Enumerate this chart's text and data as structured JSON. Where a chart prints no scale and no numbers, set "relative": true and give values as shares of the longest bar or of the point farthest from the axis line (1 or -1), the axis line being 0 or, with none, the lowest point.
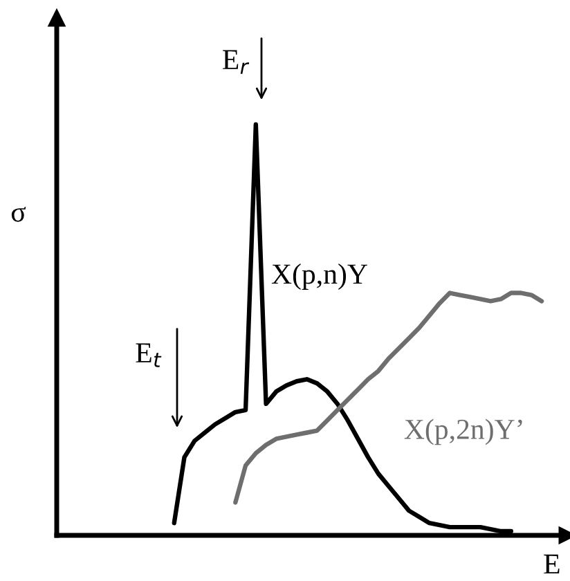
{
  "chart_data": {
    "type": "line",
    "relative": true,
    "xlabel": "E",
    "ylabel": "σ",
    "marker": "none",
    "line_style": "solid",
    "categories": [
      null,
      null,
      null,
      null,
      null,
      null,
      null,
      null,
      null,
      null,
      null,
      null,
      null,
      null,
      null,
      null,
      null,
      null,
      null,
      null,
      null,
      null,
      null,
      null,
      null,
      null,
      null,
      null,
      null,
      null,
      null,
      null,
      null,
      null,
      null,
      null,
      null,
      null,
      null,
      null,
      null,
      null,
      null,
      null,
      null,
      null,
      null,
      null,
      null,
      null
    ],
    "series": [
      {
        "name": "X(p,n)Y",
        "color": "#000000",
        "values": [
          null,
          null,
          null,
          null,
          null,
          null,
          null,
          null,
          null,
          null,
          null,
          0.03,
          0.19,
          0.23,
          0.25,
          0.27,
          0.285,
          0.3,
          0.305,
          1.0,
          0.32,
          0.35,
          0.365,
          0.375,
          0.38,
          0.37,
          0.35,
          0.32,
          0.28,
          0.235,
          0.19,
          0.15,
          0.12,
          0.09,
          0.06,
          0.045,
          0.03,
          0.025,
          0.02,
          0.02,
          0.02,
          0.02,
          0.015,
          0.01,
          0.01,
          null,
          null,
          null,
          null,
          null
        ]
      },
      {
        "name": "X(p,2n)Y’",
        "color": "#6e6e6e",
        "values": [
          null,
          null,
          null,
          null,
          null,
          null,
          null,
          null,
          null,
          null,
          null,
          null,
          null,
          null,
          null,
          null,
          null,
          0.08,
          0.17,
          0.2,
          0.22,
          0.235,
          0.24,
          0.245,
          0.25,
          0.255,
          0.28,
          0.305,
          0.33,
          0.355,
          0.38,
          0.4,
          0.43,
          0.455,
          0.48,
          0.505,
          0.535,
          0.565,
          0.59,
          0.585,
          0.58,
          0.575,
          0.57,
          0.575,
          0.59,
          0.59,
          0.585,
          0.57,
          null,
          null
        ]
      }
    ],
    "annotations": [
      "E$_{r}$",
      "E$_{t}$"
    ]
  }
}
